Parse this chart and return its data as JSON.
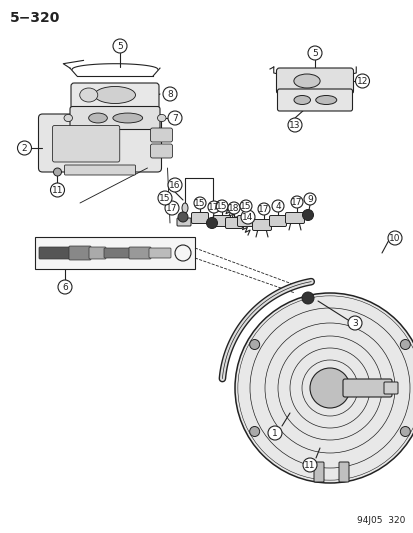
{
  "title": "5−320",
  "page_code": "94J05  320",
  "bg_color": "#ffffff",
  "lc": "#222222",
  "figsize": [
    4.14,
    5.33
  ],
  "dpi": 100
}
